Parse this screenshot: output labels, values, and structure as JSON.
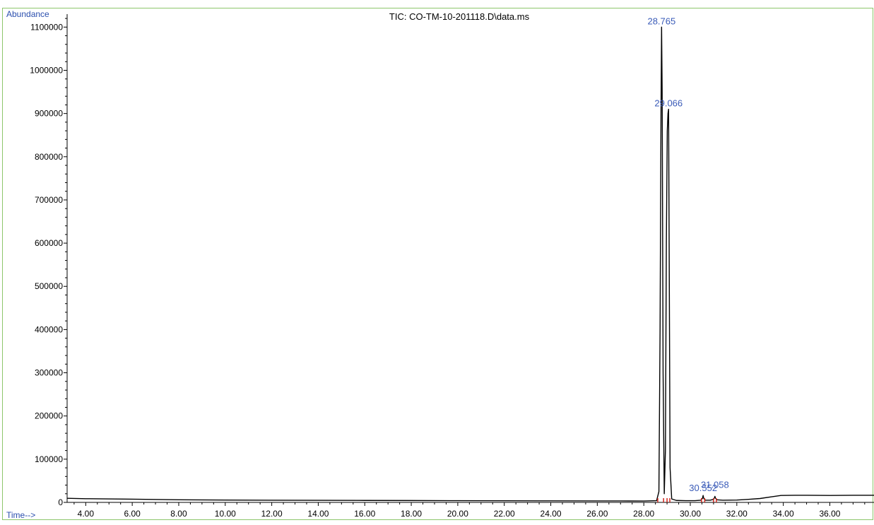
{
  "chart_data": {
    "type": "line",
    "title": "TIC: CO-TM-10-201118.D\\data.ms",
    "ylabel": "Abundance",
    "xlabel": "Time-->",
    "xlim": [
      3.2,
      37.9
    ],
    "ylim": [
      0,
      1130000
    ],
    "x_ticks": [
      "4.00",
      "6.00",
      "8.00",
      "10.00",
      "12.00",
      "14.00",
      "16.00",
      "18.00",
      "20.00",
      "22.00",
      "24.00",
      "26.00",
      "28.00",
      "30.00",
      "32.00",
      "34.00",
      "36.00"
    ],
    "y_ticks": [
      "0",
      "100000",
      "200000",
      "300000",
      "400000",
      "500000",
      "600000",
      "700000",
      "800000",
      "900000",
      "1000000",
      "1100000"
    ],
    "series": [
      {
        "x": [
          3.2,
          4.0,
          6.0,
          8.0,
          10.0,
          12.0,
          14.0,
          16.0,
          18.0,
          20.0,
          22.0,
          24.0,
          26.0,
          27.0,
          28.0,
          28.55,
          28.65,
          28.7,
          28.74,
          28.765,
          28.79,
          28.83,
          28.88,
          28.93,
          28.97,
          29.01,
          29.04,
          29.066,
          29.09,
          29.13,
          29.2,
          29.4,
          29.8,
          30.2,
          30.45,
          30.52,
          30.552,
          30.58,
          30.65,
          30.85,
          31.0,
          31.05,
          31.058,
          31.08,
          31.15,
          31.4,
          32.0,
          32.5,
          33.0,
          33.5,
          33.9,
          34.5,
          35.0,
          36.0,
          37.0,
          37.9
        ],
        "y": [
          9500,
          8500,
          7500,
          6000,
          5500,
          5000,
          4800,
          4500,
          4300,
          4000,
          3800,
          3600,
          3400,
          3300,
          3200,
          4000,
          25000,
          400000,
          900000,
          1100000,
          950000,
          300000,
          20000,
          120000,
          600000,
          860000,
          900000,
          910000,
          600000,
          80000,
          8000,
          4500,
          4000,
          4000,
          5000,
          9000,
          16000,
          9000,
          5000,
          5000,
          7000,
          12000,
          14000,
          10000,
          6000,
          5000,
          5500,
          7000,
          9000,
          13000,
          16000,
          16500,
          16500,
          16000,
          16500,
          16500
        ]
      }
    ],
    "peak_labels": [
      {
        "x": 28.765,
        "y": 1100000,
        "label": "28.765"
      },
      {
        "x": 29.066,
        "y": 910000,
        "label": "29.066"
      },
      {
        "x": 30.552,
        "y": 16000,
        "label": "30.552"
      },
      {
        "x": 31.058,
        "y": 14000,
        "label": "31.058"
      }
    ],
    "baseline_markers_x": [
      28.6,
      28.85,
      29.0,
      29.12,
      30.48,
      30.62,
      31.0,
      31.12
    ],
    "colors": {
      "frame": "#8dc66b",
      "trace": "#000000",
      "axis_label": "#2b4fae",
      "peak_label": "#3a5bb8",
      "baseline_marker": "#d0261d",
      "tick_text": "#000000"
    },
    "grid": false
  }
}
